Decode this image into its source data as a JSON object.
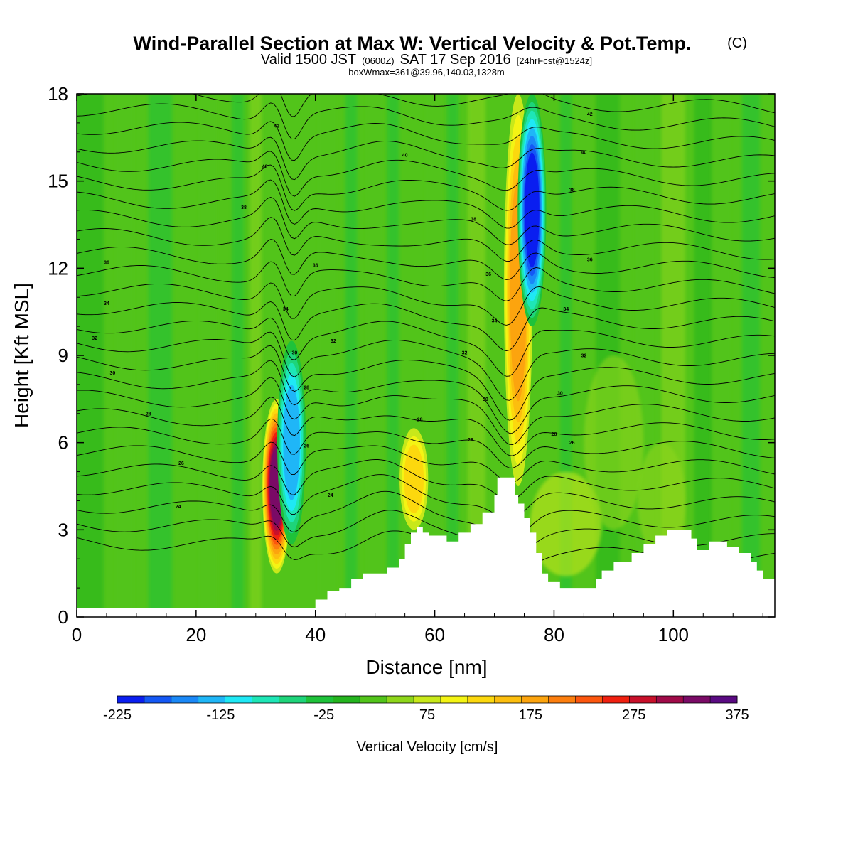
{
  "title": {
    "main": "Wind-Parallel Section at Max W: Vertical Velocity & Pot.Temp.",
    "main_mark": "(C)",
    "line2_a": "Valid 1500 JST",
    "line2_b": "(0600Z)",
    "line2_c": "SAT 17 Sep 2016",
    "line2_d": "[24hrFcst@1524z]",
    "line3": "boxWmax=361@39.96,140.03,1328m"
  },
  "colors": {
    "background_field": "#52c41a",
    "terrain": "#ffffff",
    "contour": "#000000",
    "colorbar": [
      "#0a1ef0",
      "#1458f5",
      "#1a88f7",
      "#1fb6f7",
      "#1fe8f5",
      "#1ee6b6",
      "#1ed47a",
      "#1ec23a",
      "#24b41e",
      "#52c41a",
      "#8ed61a",
      "#c8e81a",
      "#f4f414",
      "#fcd80e",
      "#fcbe0e",
      "#fca40e",
      "#fc7e0e",
      "#fc560e",
      "#f02010",
      "#c8102a",
      "#a00a48",
      "#7a0a66",
      "#5a0a82"
    ]
  },
  "chart_data": {
    "type": "heatmap",
    "xlabel": "Distance [nm]",
    "ylabel": "Height [Kft MSL]",
    "xlim": [
      0,
      117
    ],
    "ylim": [
      0,
      18
    ],
    "x_ticks": [
      0,
      20,
      40,
      60,
      80,
      100
    ],
    "x_tick_labels": [
      "0",
      "20",
      "40",
      "60",
      "80",
      "100"
    ],
    "y_ticks": [
      0,
      3,
      6,
      9,
      12,
      15,
      18
    ],
    "y_tick_labels": [
      "0",
      "3",
      "6",
      "9",
      "12",
      "15",
      "18"
    ],
    "colorbar": {
      "title": "Vertical Velocity [cm/s]",
      "min": -225,
      "max": 375,
      "step": 25,
      "tick_labels": [
        "-225",
        "-125",
        "-25",
        "75",
        "175",
        "275",
        "375"
      ]
    },
    "updraft_cores": [
      {
        "x": 33.5,
        "bottom": 1.5,
        "top": 7.5,
        "max": 300
      },
      {
        "x": 56.5,
        "bottom": 3.0,
        "top": 6.5,
        "max": 120
      },
      {
        "x": 74.0,
        "bottom": 4.5,
        "top": 18.0,
        "max": 150
      }
    ],
    "downdraft_cores": [
      {
        "x": 36.0,
        "bottom": 2.5,
        "top": 9.5,
        "min": -150
      },
      {
        "x": 76.3,
        "bottom": 10.0,
        "top": 18.0,
        "min": -225
      }
    ],
    "terrain_profile": [
      [
        0,
        0.3
      ],
      [
        40,
        0.3
      ],
      [
        40,
        0.6
      ],
      [
        42,
        0.6
      ],
      [
        42,
        0.9
      ],
      [
        44,
        0.9
      ],
      [
        44,
        1.0
      ],
      [
        46,
        1.0
      ],
      [
        46,
        1.3
      ],
      [
        48,
        1.3
      ],
      [
        48,
        1.5
      ],
      [
        52,
        1.5
      ],
      [
        52,
        1.7
      ],
      [
        54,
        1.7
      ],
      [
        54,
        2.0
      ],
      [
        55,
        2.0
      ],
      [
        55,
        2.5
      ],
      [
        56,
        2.5
      ],
      [
        56,
        2.9
      ],
      [
        57,
        2.9
      ],
      [
        57,
        3.1
      ],
      [
        58,
        3.1
      ],
      [
        58,
        2.9
      ],
      [
        59,
        2.9
      ],
      [
        59,
        2.8
      ],
      [
        62,
        2.8
      ],
      [
        62,
        2.6
      ],
      [
        64,
        2.6
      ],
      [
        64,
        2.9
      ],
      [
        66,
        2.9
      ],
      [
        66,
        3.2
      ],
      [
        68,
        3.2
      ],
      [
        68,
        3.6
      ],
      [
        70,
        3.6
      ],
      [
        70,
        4.2
      ],
      [
        70.5,
        4.2
      ],
      [
        70.5,
        4.8
      ],
      [
        73.5,
        4.8
      ],
      [
        73.5,
        4.2
      ],
      [
        74,
        4.2
      ],
      [
        74,
        3.9
      ],
      [
        75,
        3.9
      ],
      [
        75,
        3.4
      ],
      [
        76,
        3.4
      ],
      [
        76,
        2.9
      ],
      [
        77,
        2.9
      ],
      [
        77,
        2.2
      ],
      [
        78,
        2.2
      ],
      [
        78,
        1.5
      ],
      [
        79,
        1.5
      ],
      [
        79,
        1.2
      ],
      [
        81,
        1.2
      ],
      [
        81,
        1.0
      ],
      [
        87,
        1.0
      ],
      [
        87,
        1.3
      ],
      [
        88,
        1.3
      ],
      [
        88,
        1.6
      ],
      [
        90,
        1.6
      ],
      [
        90,
        1.9
      ],
      [
        93,
        1.9
      ],
      [
        93,
        2.2
      ],
      [
        95,
        2.2
      ],
      [
        95,
        2.5
      ],
      [
        97,
        2.5
      ],
      [
        97,
        2.8
      ],
      [
        99,
        2.8
      ],
      [
        99,
        3.0
      ],
      [
        103,
        3.0
      ],
      [
        103,
        2.7
      ],
      [
        104,
        2.7
      ],
      [
        104,
        2.3
      ],
      [
        106,
        2.3
      ],
      [
        106,
        2.6
      ],
      [
        109,
        2.6
      ],
      [
        109,
        2.4
      ],
      [
        111,
        2.4
      ],
      [
        111,
        2.2
      ],
      [
        113,
        2.2
      ],
      [
        113,
        1.9
      ],
      [
        114,
        1.9
      ],
      [
        114,
        1.6
      ],
      [
        115,
        1.6
      ],
      [
        115,
        1.3
      ],
      [
        117,
        1.3
      ]
    ],
    "contour_labels": [
      {
        "text": "42",
        "x": 33.5,
        "y": 16.9
      },
      {
        "text": "40",
        "x": 31.5,
        "y": 15.5
      },
      {
        "text": "40",
        "x": 55.0,
        "y": 15.9
      },
      {
        "text": "42",
        "x": 86.0,
        "y": 17.3
      },
      {
        "text": "40",
        "x": 85.0,
        "y": 16.0
      },
      {
        "text": "38",
        "x": 28.0,
        "y": 14.1
      },
      {
        "text": "38",
        "x": 66.5,
        "y": 13.7
      },
      {
        "text": "38",
        "x": 83.0,
        "y": 14.7
      },
      {
        "text": "36",
        "x": 5.0,
        "y": 12.2
      },
      {
        "text": "36",
        "x": 40.0,
        "y": 12.1
      },
      {
        "text": "36",
        "x": 69.0,
        "y": 11.8
      },
      {
        "text": "36",
        "x": 86.0,
        "y": 12.3
      },
      {
        "text": "34",
        "x": 5.0,
        "y": 10.8
      },
      {
        "text": "34",
        "x": 35.0,
        "y": 10.6
      },
      {
        "text": "34",
        "x": 70.0,
        "y": 10.2
      },
      {
        "text": "34",
        "x": 82.0,
        "y": 10.6
      },
      {
        "text": "32",
        "x": 3.0,
        "y": 9.6
      },
      {
        "text": "32",
        "x": 43.0,
        "y": 9.5
      },
      {
        "text": "32",
        "x": 65.0,
        "y": 9.1
      },
      {
        "text": "32",
        "x": 85.0,
        "y": 9.0
      },
      {
        "text": "30",
        "x": 6.0,
        "y": 8.4
      },
      {
        "text": "30",
        "x": 36.5,
        "y": 9.1
      },
      {
        "text": "30",
        "x": 68.5,
        "y": 7.5
      },
      {
        "text": "30",
        "x": 81.0,
        "y": 7.7
      },
      {
        "text": "28",
        "x": 12.0,
        "y": 7.0
      },
      {
        "text": "28",
        "x": 38.5,
        "y": 7.9
      },
      {
        "text": "28",
        "x": 57.5,
        "y": 6.8
      },
      {
        "text": "28",
        "x": 66.0,
        "y": 6.1
      },
      {
        "text": "28",
        "x": 80.0,
        "y": 6.3
      },
      {
        "text": "26",
        "x": 17.5,
        "y": 5.3
      },
      {
        "text": "26",
        "x": 38.5,
        "y": 5.9
      },
      {
        "text": "26",
        "x": 83.0,
        "y": 6.0
      },
      {
        "text": "24",
        "x": 17.0,
        "y": 3.8
      },
      {
        "text": "24",
        "x": 42.5,
        "y": 4.2
      }
    ]
  }
}
